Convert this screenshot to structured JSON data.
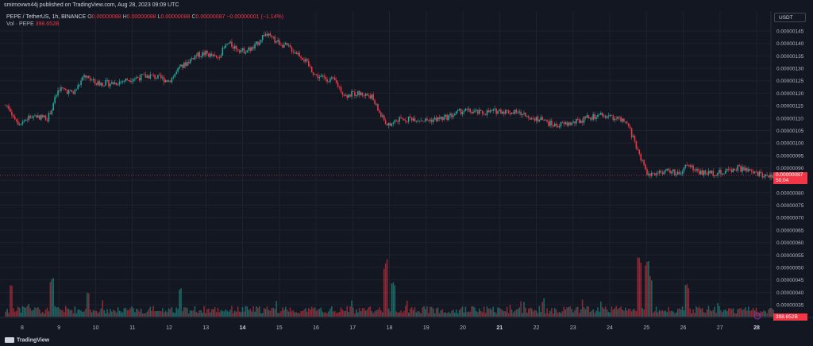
{
  "header": {
    "publisher": "smirnovwn44j published on TradingView.com, Aug 28, 2023 09:09 UTC"
  },
  "legend": {
    "symbol": "PEPE / TetherUS, 1h, BINANCE",
    "o_label": "O",
    "o": "0.00000088",
    "h_label": "H",
    "h": "0.00000088",
    "l_label": "L",
    "l": "0.00000088",
    "c_label": "C",
    "c": "0.00000087",
    "change": "−0.00000001 (−1.14%)",
    "vol_label": "Vol · PEPE",
    "vol": "398.652B"
  },
  "currency_button": "USDT",
  "footer": {
    "brand": "TradingView"
  },
  "colors": {
    "up": "#26a69a",
    "down": "#f23645",
    "bg": "#131722",
    "text": "#b2b5be"
  },
  "chart_data": {
    "type": "candlestick",
    "x_tick_labels": [
      "8",
      "9",
      "10",
      "11",
      "12",
      "13",
      "14",
      "15",
      "16",
      "17",
      "18",
      "19",
      "20",
      "21",
      "22",
      "23",
      "24",
      "25",
      "26",
      "27",
      "28"
    ],
    "bold_x_ticks": [
      "14",
      "21",
      "28"
    ],
    "y_tick_labels": [
      "0.00000145",
      "0.00000140",
      "0.00000135",
      "0.00000130",
      "0.00000125",
      "0.00000120",
      "0.00000115",
      "0.00000110",
      "0.00000105",
      "0.00000100",
      "0.00000095",
      "0.00000090",
      "0.00000085",
      "0.00000080",
      "0.00000075",
      "0.00000070",
      "0.00000065",
      "0.00000060",
      "0.00000055",
      "0.00000050",
      "0.00000045",
      "0.00000040",
      "0.00000035"
    ],
    "y_tick_values": [
      1.45,
      1.4,
      1.35,
      1.3,
      1.25,
      1.2,
      1.15,
      1.1,
      1.05,
      1.0,
      0.95,
      0.9,
      0.85,
      0.8,
      0.75,
      0.7,
      0.65,
      0.6,
      0.55,
      0.5,
      0.45,
      0.4,
      0.35
    ],
    "last_price": "0.00000087",
    "last_price_value": 0.87,
    "countdown": "50:04",
    "close_path": [
      {
        "day": 7.6,
        "p": 1.15
      },
      {
        "day": 7.9,
        "p": 1.08
      },
      {
        "day": 8.3,
        "p": 1.11
      },
      {
        "day": 8.7,
        "p": 1.1
      },
      {
        "day": 9.0,
        "p": 1.22
      },
      {
        "day": 9.4,
        "p": 1.2
      },
      {
        "day": 9.7,
        "p": 1.27
      },
      {
        "day": 10.0,
        "p": 1.24
      },
      {
        "day": 10.5,
        "p": 1.24
      },
      {
        "day": 11.0,
        "p": 1.26
      },
      {
        "day": 11.5,
        "p": 1.27
      },
      {
        "day": 12.0,
        "p": 1.25
      },
      {
        "day": 12.3,
        "p": 1.3
      },
      {
        "day": 12.7,
        "p": 1.35
      },
      {
        "day": 13.0,
        "p": 1.36
      },
      {
        "day": 13.3,
        "p": 1.34
      },
      {
        "day": 13.6,
        "p": 1.4
      },
      {
        "day": 14.0,
        "p": 1.37
      },
      {
        "day": 14.3,
        "p": 1.38
      },
      {
        "day": 14.6,
        "p": 1.44
      },
      {
        "day": 14.9,
        "p": 1.41
      },
      {
        "day": 15.3,
        "p": 1.38
      },
      {
        "day": 15.6,
        "p": 1.35
      },
      {
        "day": 16.0,
        "p": 1.27
      },
      {
        "day": 16.5,
        "p": 1.25
      },
      {
        "day": 16.8,
        "p": 1.19
      },
      {
        "day": 17.1,
        "p": 1.2
      },
      {
        "day": 17.5,
        "p": 1.19
      },
      {
        "day": 17.8,
        "p": 1.1
      },
      {
        "day": 18.0,
        "p": 1.07
      },
      {
        "day": 18.2,
        "p": 1.09
      },
      {
        "day": 18.6,
        "p": 1.1
      },
      {
        "day": 19.0,
        "p": 1.09
      },
      {
        "day": 19.5,
        "p": 1.1
      },
      {
        "day": 20.0,
        "p": 1.13
      },
      {
        "day": 20.5,
        "p": 1.12
      },
      {
        "day": 21.0,
        "p": 1.13
      },
      {
        "day": 21.5,
        "p": 1.12
      },
      {
        "day": 22.0,
        "p": 1.1
      },
      {
        "day": 22.5,
        "p": 1.07
      },
      {
        "day": 23.0,
        "p": 1.08
      },
      {
        "day": 23.4,
        "p": 1.1
      },
      {
        "day": 23.8,
        "p": 1.11
      },
      {
        "day": 24.2,
        "p": 1.1
      },
      {
        "day": 24.5,
        "p": 1.07
      },
      {
        "day": 24.8,
        "p": 0.96
      },
      {
        "day": 25.0,
        "p": 0.87
      },
      {
        "day": 25.3,
        "p": 0.88
      },
      {
        "day": 25.6,
        "p": 0.89
      },
      {
        "day": 25.9,
        "p": 0.87
      },
      {
        "day": 26.1,
        "p": 0.91
      },
      {
        "day": 26.5,
        "p": 0.88
      },
      {
        "day": 27.0,
        "p": 0.88
      },
      {
        "day": 27.5,
        "p": 0.9
      },
      {
        "day": 27.9,
        "p": 0.88
      },
      {
        "day": 28.2,
        "p": 0.87
      }
    ],
    "volume_spikes": [
      {
        "day": 7.7,
        "v": 0.55
      },
      {
        "day": 8.8,
        "v": 0.65
      },
      {
        "day": 9.8,
        "v": 0.4
      },
      {
        "day": 12.3,
        "v": 0.45
      },
      {
        "day": 17.9,
        "v": 0.92
      },
      {
        "day": 18.1,
        "v": 0.6
      },
      {
        "day": 24.8,
        "v": 0.95
      },
      {
        "day": 25.0,
        "v": 0.9
      },
      {
        "day": 25.1,
        "v": 0.7
      },
      {
        "day": 26.1,
        "v": 0.55
      }
    ]
  }
}
